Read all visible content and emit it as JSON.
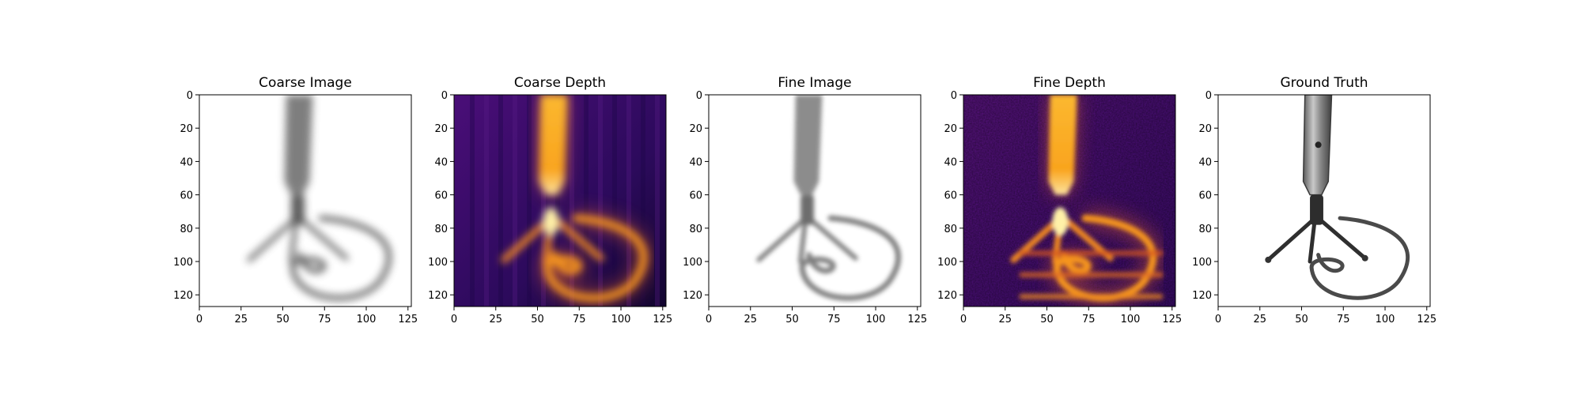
{
  "figure": {
    "panels": [
      {
        "title": "Coarse Image",
        "kind": "rgb"
      },
      {
        "title": "Coarse Depth",
        "kind": "depth"
      },
      {
        "title": "Fine Image",
        "kind": "rgb"
      },
      {
        "title": "Fine Depth",
        "kind": "depth"
      },
      {
        "title": "Ground Truth",
        "kind": "rgb"
      }
    ],
    "colors": {
      "depth_background": "#3a0c72",
      "depth_foreground": "#fcb52c",
      "depth_highlight": "#fff1a8",
      "image_background": "#ffffff",
      "image_object": "#5a5a5a"
    }
  },
  "chart_data": [
    {
      "type": "heatmap",
      "title": "Coarse Image",
      "xlim": [
        0,
        127
      ],
      "ylim": [
        127,
        0
      ],
      "xticks": [
        0,
        25,
        50,
        75,
        100,
        125
      ],
      "yticks": [
        0,
        20,
        40,
        60,
        80,
        100,
        120
      ],
      "colormap": "rgb",
      "grid": false
    },
    {
      "type": "heatmap",
      "title": "Coarse Depth",
      "xlim": [
        0,
        127
      ],
      "ylim": [
        127,
        0
      ],
      "xticks": [
        0,
        25,
        50,
        75,
        100,
        125
      ],
      "yticks": [
        0,
        20,
        40,
        60,
        80,
        100,
        120
      ],
      "colormap": "inferno",
      "grid": false
    },
    {
      "type": "heatmap",
      "title": "Fine Image",
      "xlim": [
        0,
        127
      ],
      "ylim": [
        127,
        0
      ],
      "xticks": [
        0,
        25,
        50,
        75,
        100,
        125
      ],
      "yticks": [
        0,
        20,
        40,
        60,
        80,
        100,
        120
      ],
      "colormap": "rgb",
      "grid": false
    },
    {
      "type": "heatmap",
      "title": "Fine Depth",
      "xlim": [
        0,
        127
      ],
      "ylim": [
        127,
        0
      ],
      "xticks": [
        0,
        25,
        50,
        75,
        100,
        125
      ],
      "yticks": [
        0,
        20,
        40,
        60,
        80,
        100,
        120
      ],
      "colormap": "inferno",
      "grid": false
    },
    {
      "type": "heatmap",
      "title": "Ground Truth",
      "xlim": [
        0,
        127
      ],
      "ylim": [
        127,
        0
      ],
      "xticks": [
        0,
        25,
        50,
        75,
        100,
        125
      ],
      "yticks": [
        0,
        20,
        40,
        60,
        80,
        100,
        120
      ],
      "colormap": "rgb",
      "grid": false
    }
  ]
}
